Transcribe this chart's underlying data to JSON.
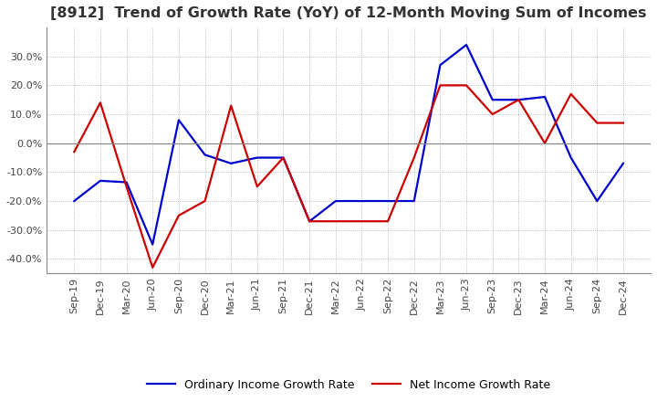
{
  "title": "[8912]  Trend of Growth Rate (YoY) of 12-Month Moving Sum of Incomes",
  "title_fontsize": 11.5,
  "ylim": [
    -45,
    40
  ],
  "yticks": [
    -40,
    -30,
    -20,
    -10,
    0,
    10,
    20,
    30
  ],
  "background_color": "#ffffff",
  "grid_color": "#aaaaaa",
  "x_labels": [
    "Sep-19",
    "Dec-19",
    "Mar-20",
    "Jun-20",
    "Sep-20",
    "Dec-20",
    "Mar-21",
    "Jun-21",
    "Sep-21",
    "Dec-21",
    "Mar-22",
    "Jun-22",
    "Sep-22",
    "Dec-22",
    "Mar-23",
    "Jun-23",
    "Sep-23",
    "Dec-23",
    "Mar-24",
    "Jun-24",
    "Sep-24",
    "Dec-24"
  ],
  "ordinary_income": [
    -20.0,
    -13.0,
    -13.5,
    -35.0,
    8.0,
    -4.0,
    -7.0,
    -5.0,
    -5.0,
    -27.0,
    -20.0,
    -20.0,
    -20.0,
    -20.0,
    27.0,
    34.0,
    15.0,
    15.0,
    16.0,
    -5.0,
    -20.0,
    -7.0
  ],
  "net_income": [
    -3.0,
    14.0,
    -15.0,
    -43.0,
    -25.0,
    -20.0,
    13.0,
    -15.0,
    -5.0,
    -27.0,
    -27.0,
    -27.0,
    -27.0,
    -5.0,
    20.0,
    20.0,
    10.0,
    15.0,
    0.0,
    17.0,
    7.0,
    7.0
  ],
  "ordinary_color": "#0000cc",
  "net_color": "#cc0000",
  "line_width": 1.6
}
